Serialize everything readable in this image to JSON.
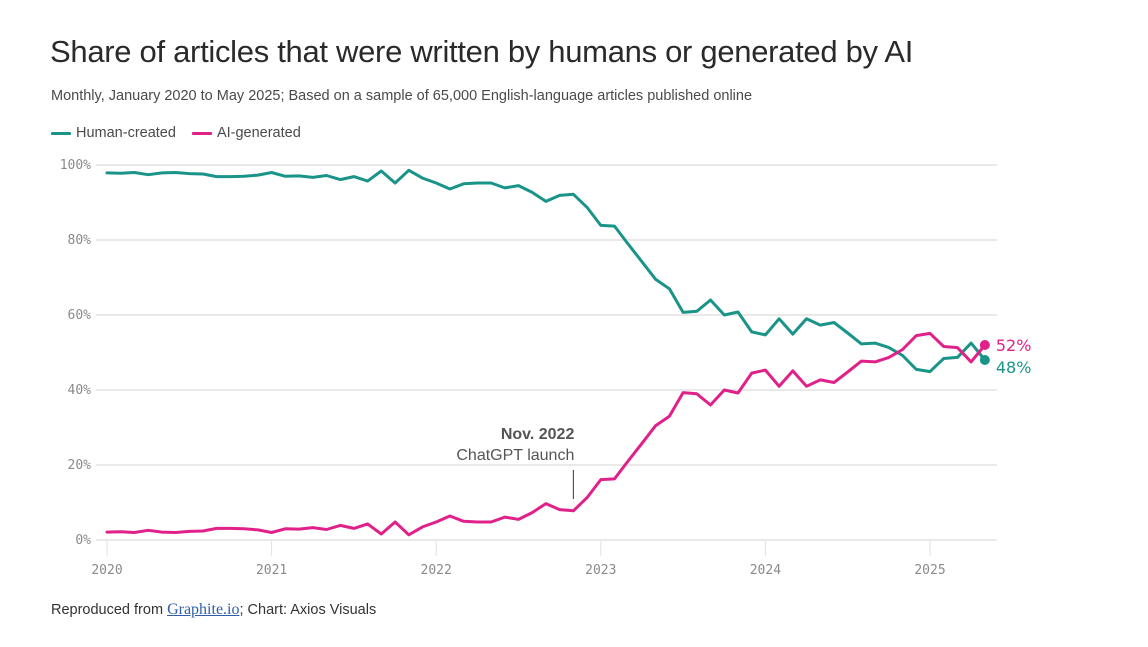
{
  "header": {
    "title": "Share of articles that were written by humans or generated by AI",
    "subtitle": "Monthly, January 2020 to May 2025; Based on a sample of 65,000 English-language articles published online"
  },
  "legend": [
    {
      "label": "Human-created",
      "color": "#1a9488"
    },
    {
      "label": "AI-generated",
      "color": "#e0218a"
    }
  ],
  "footer": {
    "prefix": "Reproduced from ",
    "link_text": "Graphite.io",
    "suffix": "; Chart: Axios Visuals"
  },
  "chart_data": {
    "type": "line",
    "title": "Share of articles that were written by humans or generated by AI",
    "xlabel": "",
    "ylabel": "",
    "x_start": "2020-01",
    "x_end": "2025-05",
    "x_ticks": [
      "2020",
      "2021",
      "2022",
      "2023",
      "2024",
      "2025"
    ],
    "y_ticks": [
      "0%",
      "20%",
      "40%",
      "60%",
      "80%",
      "100%"
    ],
    "ylim": [
      0,
      100
    ],
    "grid": true,
    "legend_position": "top-left",
    "series": [
      {
        "name": "Human-created",
        "color": "#1a9488",
        "end_label": "48%",
        "values": [
          97.9,
          97.8,
          98.0,
          97.4,
          97.9,
          98.0,
          97.7,
          97.6,
          96.9,
          96.9,
          97.0,
          97.3,
          98.0,
          97.0,
          97.1,
          96.7,
          97.2,
          96.1,
          96.9,
          95.7,
          98.4,
          95.2,
          98.6,
          96.5,
          95.2,
          93.6,
          95.0,
          95.2,
          95.2,
          93.9,
          94.5,
          92.7,
          90.3,
          91.9,
          92.2,
          88.7,
          83.9,
          83.7,
          78.9,
          74.2,
          69.5,
          67.0,
          60.7,
          61.0,
          64.0,
          60.0,
          60.8,
          55.5,
          54.7,
          59.0,
          54.9,
          59.0,
          57.3,
          58.0,
          55.2,
          52.3,
          52.5,
          51.3,
          49.2,
          45.5,
          44.9,
          48.4,
          48.7,
          52.5,
          48.0
        ]
      },
      {
        "name": "AI-generated",
        "color": "#e0218a",
        "end_label": "52%",
        "values": [
          2.1,
          2.2,
          2.0,
          2.6,
          2.1,
          2.0,
          2.3,
          2.4,
          3.1,
          3.1,
          3.0,
          2.7,
          2.0,
          3.0,
          2.9,
          3.3,
          2.8,
          3.9,
          3.1,
          4.3,
          1.6,
          4.8,
          1.4,
          3.5,
          4.8,
          6.4,
          5.0,
          4.8,
          4.8,
          6.1,
          5.5,
          7.3,
          9.7,
          8.1,
          7.8,
          11.3,
          16.1,
          16.3,
          21.1,
          25.8,
          30.5,
          33.0,
          39.3,
          39.0,
          36.0,
          40.0,
          39.2,
          44.5,
          45.3,
          41.0,
          45.1,
          41.0,
          42.7,
          42.0,
          44.8,
          47.7,
          47.5,
          48.7,
          50.8,
          54.5,
          55.1,
          51.6,
          51.3,
          47.5,
          52.0
        ]
      }
    ],
    "annotations": [
      {
        "x": "2022-11",
        "title": "Nov. 2022",
        "text": "ChatGPT launch"
      }
    ]
  }
}
